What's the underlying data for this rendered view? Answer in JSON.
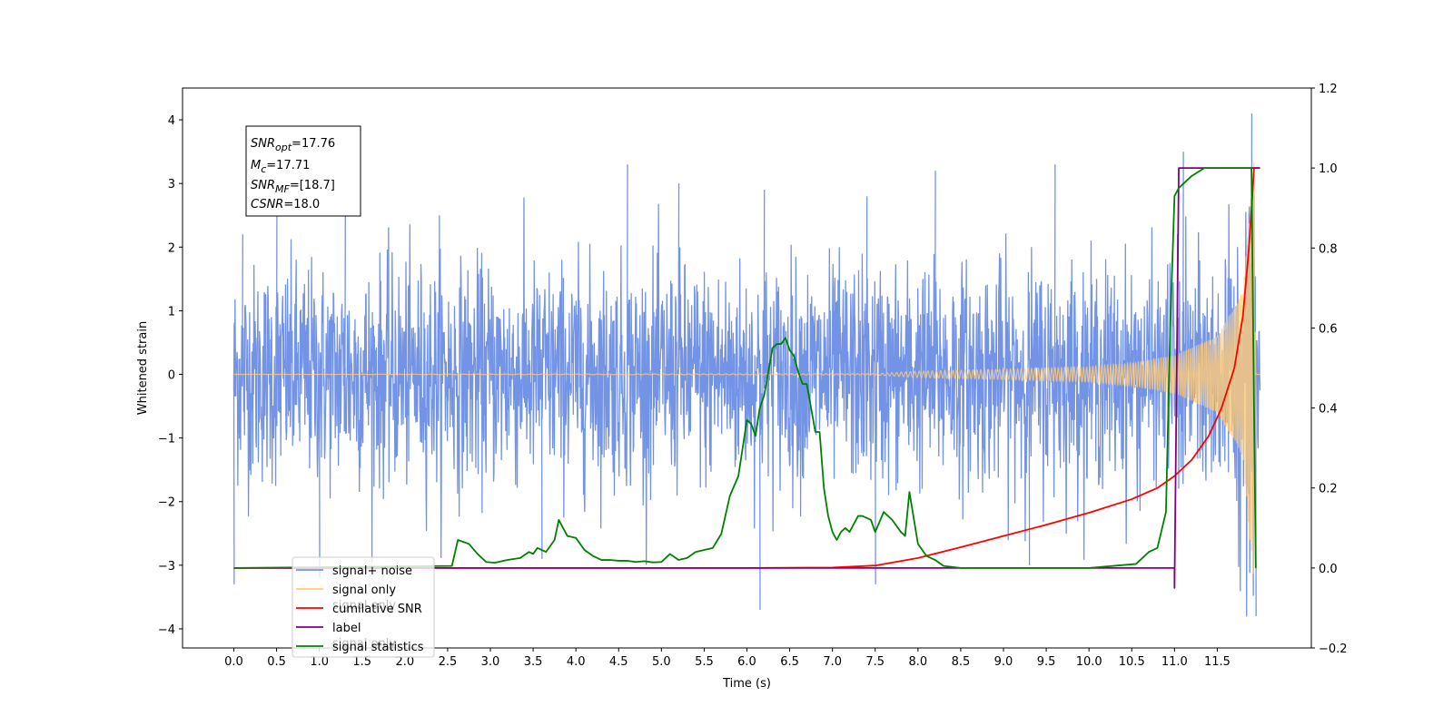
{
  "chart_data": {
    "type": "line",
    "xlabel": "Time (s)",
    "ylabel": "Whitened strain",
    "xlim": [
      -0.6,
      12.6
    ],
    "ylim": [
      -4.3,
      4.5
    ],
    "y2lim": [
      -0.2,
      1.2
    ],
    "x_ticks": [
      "0.0",
      "0.5",
      "1.0",
      "1.5",
      "2.0",
      "2.5",
      "3.0",
      "3.5",
      "4.0",
      "4.5",
      "5.0",
      "5.5",
      "6.0",
      "6.5",
      "7.0",
      "7.5",
      "8.0",
      "8.5",
      "9.0",
      "9.5",
      "10.0",
      "10.5",
      "11.0",
      "11.5"
    ],
    "y_ticks": [
      "4",
      "3",
      "2",
      "1",
      "0",
      "−1",
      "−2",
      "−3",
      "−4"
    ],
    "y2_ticks": [
      "1.2",
      "1.0",
      "0.8",
      "0.6",
      "0.4",
      "0.2",
      "0.0",
      "−0.2"
    ],
    "annotation": {
      "line1_main": "SNR",
      "line1_sub": "opt",
      "line1_value": "=17.76",
      "line2_main": "M",
      "line2_sub": "c",
      "line2_value": "=17.71",
      "line3_main": "SNR",
      "line3_sub": "MF",
      "line3_value": "=[18.7]",
      "line4_main": "CSNR",
      "line4_value": "=18.0"
    },
    "legend": {
      "placement": "lower-left",
      "entries": [
        {
          "label": "signal+ noise",
          "color": "#7293e6"
        },
        {
          "label": "signal only",
          "color": "#ffcc77"
        },
        {
          "label": "cumilative SNR",
          "color": "#ff0000"
        },
        {
          "label": "label",
          "color": "#800080"
        },
        {
          "label": "signal statistics",
          "color": "#008000"
        }
      ],
      "occluded_text": [
        "signal only",
        "signal only"
      ]
    },
    "series": [
      {
        "name": "signal+ noise",
        "axis": "left",
        "color": "#7293e6",
        "description_free": true,
        "x_range": [
          0,
          12.0
        ],
        "amplitude_typical": 2.2,
        "peaks": [
          [
            0.1,
            2.2
          ],
          [
            0.5,
            2.9
          ],
          [
            1.3,
            2.6
          ],
          [
            2.4,
            2.5
          ],
          [
            4.6,
            3.3
          ],
          [
            5.2,
            3.0
          ],
          [
            6.2,
            2.9
          ],
          [
            7.4,
            2.8
          ],
          [
            8.2,
            3.2
          ],
          [
            9.6,
            3.3
          ],
          [
            11.1,
            3.5
          ],
          [
            11.9,
            4.1
          ]
        ],
        "troughs": [
          [
            0.0,
            -3.3
          ],
          [
            1.0,
            -3.2
          ],
          [
            3.6,
            -2.9
          ],
          [
            6.15,
            -3.7
          ],
          [
            7.5,
            -3.3
          ],
          [
            9.3,
            -3.0
          ],
          [
            11.95,
            -3.8
          ]
        ]
      },
      {
        "name": "signal only",
        "axis": "left",
        "color": "#ffcc77",
        "x_range": [
          0,
          12.0
        ],
        "envelope": [
          [
            0.0,
            0.0
          ],
          [
            7.5,
            0.01
          ],
          [
            8.0,
            0.05
          ],
          [
            9.0,
            0.08
          ],
          [
            10.0,
            0.12
          ],
          [
            10.5,
            0.18
          ],
          [
            11.0,
            0.3
          ],
          [
            11.5,
            0.6
          ],
          [
            11.8,
            1.3
          ],
          [
            11.93,
            3.4
          ],
          [
            11.95,
            0.0
          ]
        ]
      },
      {
        "name": "cumilative SNR",
        "axis": "right",
        "x": [
          0.0,
          6.0,
          7.0,
          7.5,
          8.0,
          8.5,
          9.0,
          9.5,
          10.0,
          10.5,
          10.8,
          11.0,
          11.2,
          11.4,
          11.55,
          11.7,
          11.8,
          11.87,
          11.91,
          11.93,
          12.0
        ],
        "y": [
          0.0,
          0.0,
          0.001,
          0.006,
          0.025,
          0.052,
          0.08,
          0.108,
          0.138,
          0.172,
          0.2,
          0.23,
          0.27,
          0.33,
          0.4,
          0.5,
          0.63,
          0.8,
          0.93,
          1.0,
          1.0
        ]
      },
      {
        "name": "label",
        "axis": "right",
        "x": [
          0.0,
          11.0,
          11.0,
          11.05,
          11.93,
          11.95,
          12.0
        ],
        "y": [
          0.0,
          0.0,
          -0.05,
          1.0,
          1.0,
          1.0,
          1.0
        ]
      },
      {
        "name": "signal statistics",
        "axis": "right",
        "x": [
          0.0,
          2.55,
          2.62,
          2.75,
          2.85,
          2.95,
          3.05,
          3.2,
          3.35,
          3.45,
          3.5,
          3.55,
          3.65,
          3.75,
          3.8,
          3.9,
          4.0,
          4.1,
          4.2,
          4.3,
          4.4,
          4.5,
          4.6,
          4.7,
          4.8,
          4.9,
          5.0,
          5.1,
          5.2,
          5.3,
          5.4,
          5.5,
          5.6,
          5.7,
          5.8,
          5.9,
          6.0,
          6.05,
          6.1,
          6.15,
          6.2,
          6.3,
          6.35,
          6.4,
          6.45,
          6.5,
          6.55,
          6.6,
          6.65,
          6.7,
          6.8,
          6.85,
          6.9,
          6.95,
          7.0,
          7.05,
          7.1,
          7.15,
          7.2,
          7.3,
          7.35,
          7.45,
          7.5,
          7.6,
          7.7,
          7.8,
          7.85,
          7.9,
          8.0,
          8.1,
          8.2,
          8.3,
          8.5,
          9.0,
          10.0,
          10.55,
          10.6,
          10.7,
          10.8,
          10.9,
          10.95,
          11.0,
          11.05,
          11.2,
          11.35,
          11.6,
          11.9,
          11.95
        ],
        "y": [
          0.0,
          0.005,
          0.07,
          0.06,
          0.035,
          0.015,
          0.013,
          0.02,
          0.025,
          0.04,
          0.035,
          0.05,
          0.04,
          0.07,
          0.12,
          0.08,
          0.075,
          0.045,
          0.03,
          0.02,
          0.02,
          0.018,
          0.018,
          0.015,
          0.017,
          0.014,
          0.015,
          0.035,
          0.02,
          0.025,
          0.04,
          0.045,
          0.05,
          0.085,
          0.18,
          0.23,
          0.37,
          0.36,
          0.33,
          0.4,
          0.43,
          0.55,
          0.56,
          0.56,
          0.575,
          0.545,
          0.53,
          0.49,
          0.46,
          0.46,
          0.34,
          0.34,
          0.2,
          0.13,
          0.09,
          0.07,
          0.09,
          0.1,
          0.09,
          0.13,
          0.13,
          0.12,
          0.09,
          0.14,
          0.12,
          0.09,
          0.08,
          0.19,
          0.06,
          0.03,
          0.02,
          0.005,
          0.0,
          0.0,
          0.0,
          0.01,
          0.02,
          0.04,
          0.05,
          0.14,
          0.6,
          0.93,
          0.95,
          0.98,
          1.0,
          1.0,
          1.0,
          0.0
        ]
      }
    ]
  }
}
